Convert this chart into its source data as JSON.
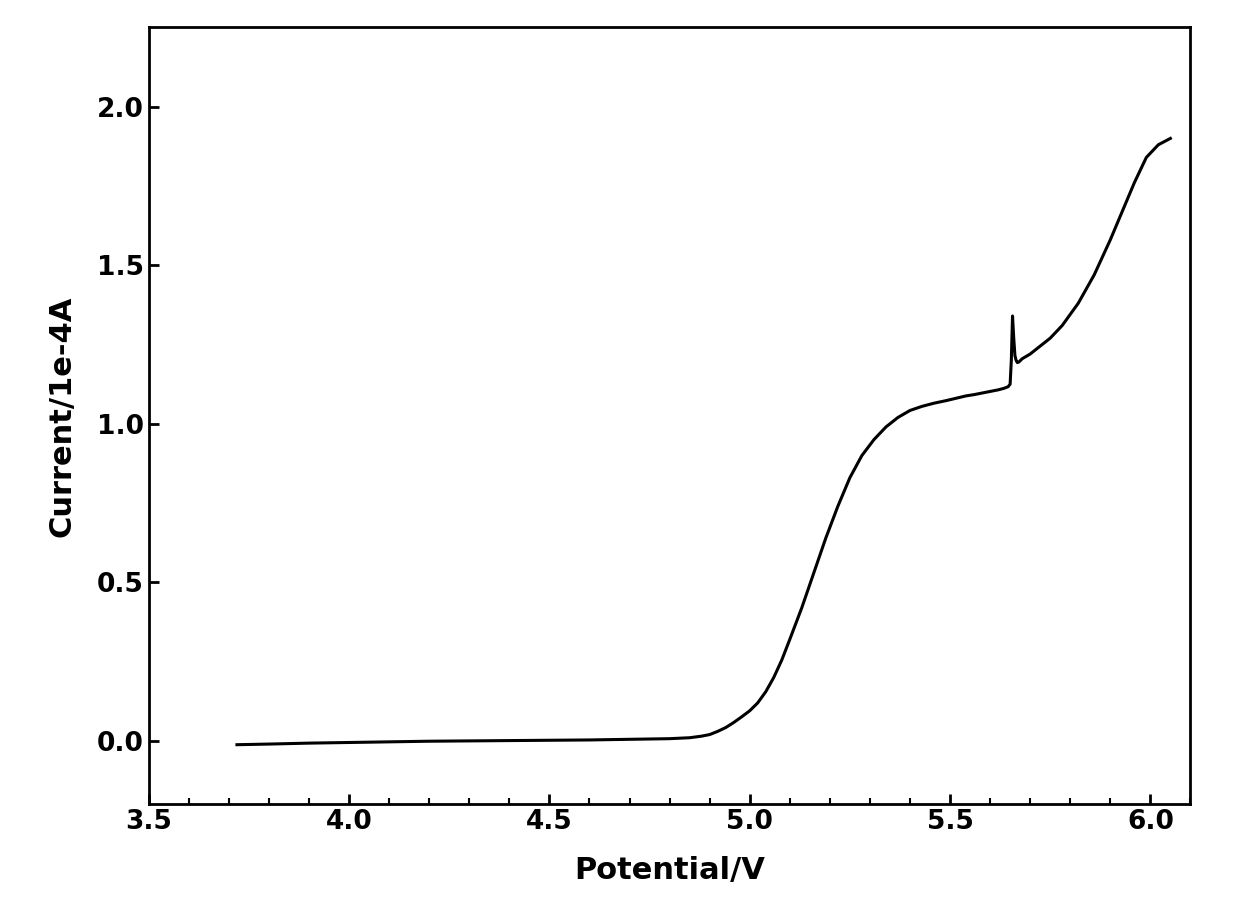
{
  "xlabel": "Potential/V",
  "ylabel": "Current/1e-4A",
  "xlim": [
    3.5,
    6.1
  ],
  "ylim": [
    -0.2,
    2.25
  ],
  "xticks": [
    3.5,
    4.0,
    4.5,
    5.0,
    5.5,
    6.0
  ],
  "yticks": [
    0.0,
    0.5,
    1.0,
    1.5,
    2.0
  ],
  "line_color": "#000000",
  "line_width": 2.2,
  "background_color": "#ffffff",
  "xlabel_fontsize": 22,
  "ylabel_fontsize": 22,
  "tick_fontsize": 19,
  "spine_linewidth": 2.0,
  "curve_points": [
    [
      3.72,
      -0.012
    ],
    [
      3.8,
      -0.01
    ],
    [
      3.9,
      -0.007
    ],
    [
      4.0,
      -0.005
    ],
    [
      4.1,
      -0.003
    ],
    [
      4.2,
      -0.001
    ],
    [
      4.3,
      0.0
    ],
    [
      4.4,
      0.001
    ],
    [
      4.5,
      0.002
    ],
    [
      4.6,
      0.003
    ],
    [
      4.7,
      0.005
    ],
    [
      4.8,
      0.007
    ],
    [
      4.85,
      0.01
    ],
    [
      4.88,
      0.015
    ],
    [
      4.9,
      0.02
    ],
    [
      4.92,
      0.03
    ],
    [
      4.94,
      0.042
    ],
    [
      4.96,
      0.058
    ],
    [
      4.98,
      0.076
    ],
    [
      5.0,
      0.095
    ],
    [
      5.02,
      0.12
    ],
    [
      5.04,
      0.155
    ],
    [
      5.06,
      0.2
    ],
    [
      5.08,
      0.255
    ],
    [
      5.1,
      0.32
    ],
    [
      5.13,
      0.42
    ],
    [
      5.16,
      0.53
    ],
    [
      5.19,
      0.64
    ],
    [
      5.22,
      0.74
    ],
    [
      5.25,
      0.83
    ],
    [
      5.28,
      0.9
    ],
    [
      5.31,
      0.95
    ],
    [
      5.34,
      0.99
    ],
    [
      5.37,
      1.02
    ],
    [
      5.4,
      1.042
    ],
    [
      5.43,
      1.055
    ],
    [
      5.46,
      1.065
    ],
    [
      5.49,
      1.073
    ],
    [
      5.52,
      1.082
    ],
    [
      5.54,
      1.088
    ],
    [
      5.56,
      1.092
    ],
    [
      5.58,
      1.097
    ],
    [
      5.6,
      1.102
    ],
    [
      5.62,
      1.107
    ],
    [
      5.635,
      1.112
    ],
    [
      5.645,
      1.117
    ],
    [
      5.65,
      1.125
    ],
    [
      5.653,
      1.2
    ],
    [
      5.656,
      1.34
    ],
    [
      5.659,
      1.27
    ],
    [
      5.662,
      1.215
    ],
    [
      5.665,
      1.2
    ],
    [
      5.668,
      1.193
    ],
    [
      5.672,
      1.195
    ],
    [
      5.68,
      1.205
    ],
    [
      5.7,
      1.22
    ],
    [
      5.72,
      1.24
    ],
    [
      5.75,
      1.27
    ],
    [
      5.78,
      1.31
    ],
    [
      5.82,
      1.38
    ],
    [
      5.86,
      1.47
    ],
    [
      5.9,
      1.58
    ],
    [
      5.93,
      1.67
    ],
    [
      5.96,
      1.76
    ],
    [
      5.99,
      1.84
    ],
    [
      6.02,
      1.88
    ],
    [
      6.05,
      1.9
    ]
  ]
}
